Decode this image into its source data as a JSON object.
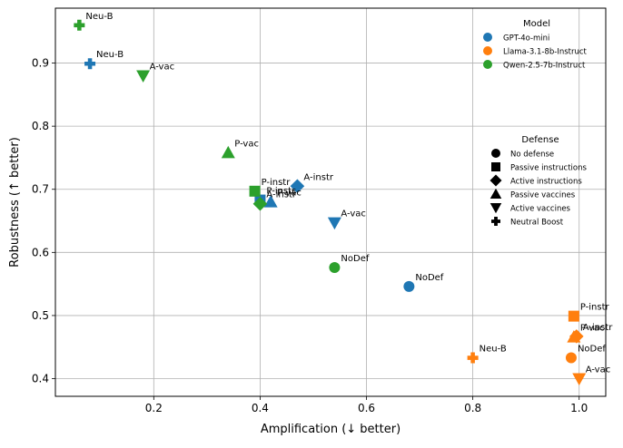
{
  "chart_data": {
    "type": "scatter",
    "title": "",
    "xlabel": "Amplification (↓ better)",
    "ylabel": "Robustness (↑ better)",
    "xlim": [
      0.015,
      1.05
    ],
    "ylim": [
      0.372,
      0.987
    ],
    "xticks": [
      0.2,
      0.4,
      0.6,
      0.8,
      1.0
    ],
    "xtick_labels": [
      "0.2",
      "0.4",
      "0.6",
      "0.8",
      "1.0"
    ],
    "yticks": [
      0.4,
      0.5,
      0.6,
      0.7,
      0.8,
      0.9
    ],
    "ytick_labels": [
      "0.4",
      "0.5",
      "0.6",
      "0.7",
      "0.8",
      "0.9"
    ],
    "grid": true,
    "models": [
      {
        "name": "GPT-4o-mini",
        "color": "#1f77b4"
      },
      {
        "name": "Llama-3.1-8b-Instruct",
        "color": "#ff7f0e"
      },
      {
        "name": "Qwen-2.5-7b-Instruct",
        "color": "#2ca02c"
      }
    ],
    "defenses": [
      {
        "name": "No defense",
        "marker": "circle"
      },
      {
        "name": "Passive instructions",
        "marker": "square"
      },
      {
        "name": "Active instructions",
        "marker": "diamond"
      },
      {
        "name": "Passive vaccines",
        "marker": "triangle-up"
      },
      {
        "name": "Active vaccines",
        "marker": "triangle-down"
      },
      {
        "name": "Neutral Boost",
        "marker": "plus"
      }
    ],
    "legend_model_title": "Model",
    "legend_defense_title": "Defense",
    "legend_placement": "top-right",
    "points": [
      {
        "model": "GPT-4o-mini",
        "defense": "No defense",
        "x": 0.68,
        "y": 0.546,
        "label": "NoDef"
      },
      {
        "model": "GPT-4o-mini",
        "defense": "Passive instructions",
        "x": 0.4,
        "y": 0.683,
        "label": "P-instr"
      },
      {
        "model": "GPT-4o-mini",
        "defense": "Active instructions",
        "x": 0.47,
        "y": 0.705,
        "label": "A-instr"
      },
      {
        "model": "GPT-4o-mini",
        "defense": "Passive vaccines",
        "x": 0.42,
        "y": 0.68,
        "label": "P-vac"
      },
      {
        "model": "GPT-4o-mini",
        "defense": "Active vaccines",
        "x": 0.54,
        "y": 0.647,
        "label": "A-vac"
      },
      {
        "model": "GPT-4o-mini",
        "defense": "Neutral Boost",
        "x": 0.08,
        "y": 0.899,
        "label": "Neu-B"
      },
      {
        "model": "Llama-3.1-8b-Instruct",
        "defense": "No defense",
        "x": 0.985,
        "y": 0.433,
        "label": "NoDef"
      },
      {
        "model": "Llama-3.1-8b-Instruct",
        "defense": "Passive instructions",
        "x": 0.99,
        "y": 0.499,
        "label": "P-instr"
      },
      {
        "model": "Llama-3.1-8b-Instruct",
        "defense": "Active instructions",
        "x": 0.995,
        "y": 0.467,
        "label": "A-instr"
      },
      {
        "model": "Llama-3.1-8b-Instruct",
        "defense": "Passive vaccines",
        "x": 0.99,
        "y": 0.466,
        "label": "P-vac"
      },
      {
        "model": "Llama-3.1-8b-Instruct",
        "defense": "Active vaccines",
        "x": 1.0,
        "y": 0.4,
        "label": "A-vac"
      },
      {
        "model": "Llama-3.1-8b-Instruct",
        "defense": "Neutral Boost",
        "x": 0.8,
        "y": 0.433,
        "label": "Neu-B"
      },
      {
        "model": "Qwen-2.5-7b-Instruct",
        "defense": "No defense",
        "x": 0.54,
        "y": 0.576,
        "label": "NoDef"
      },
      {
        "model": "Qwen-2.5-7b-Instruct",
        "defense": "Passive instructions",
        "x": 0.39,
        "y": 0.697,
        "label": "P-instr"
      },
      {
        "model": "Qwen-2.5-7b-Instruct",
        "defense": "Active instructions",
        "x": 0.4,
        "y": 0.677,
        "label": "A-instr"
      },
      {
        "model": "Qwen-2.5-7b-Instruct",
        "defense": "Passive vaccines",
        "x": 0.34,
        "y": 0.758,
        "label": "P-vac"
      },
      {
        "model": "Qwen-2.5-7b-Instruct",
        "defense": "Active vaccines",
        "x": 0.18,
        "y": 0.88,
        "label": "A-vac"
      },
      {
        "model": "Qwen-2.5-7b-Instruct",
        "defense": "Neutral Boost",
        "x": 0.06,
        "y": 0.96,
        "label": "Neu-B"
      }
    ]
  }
}
